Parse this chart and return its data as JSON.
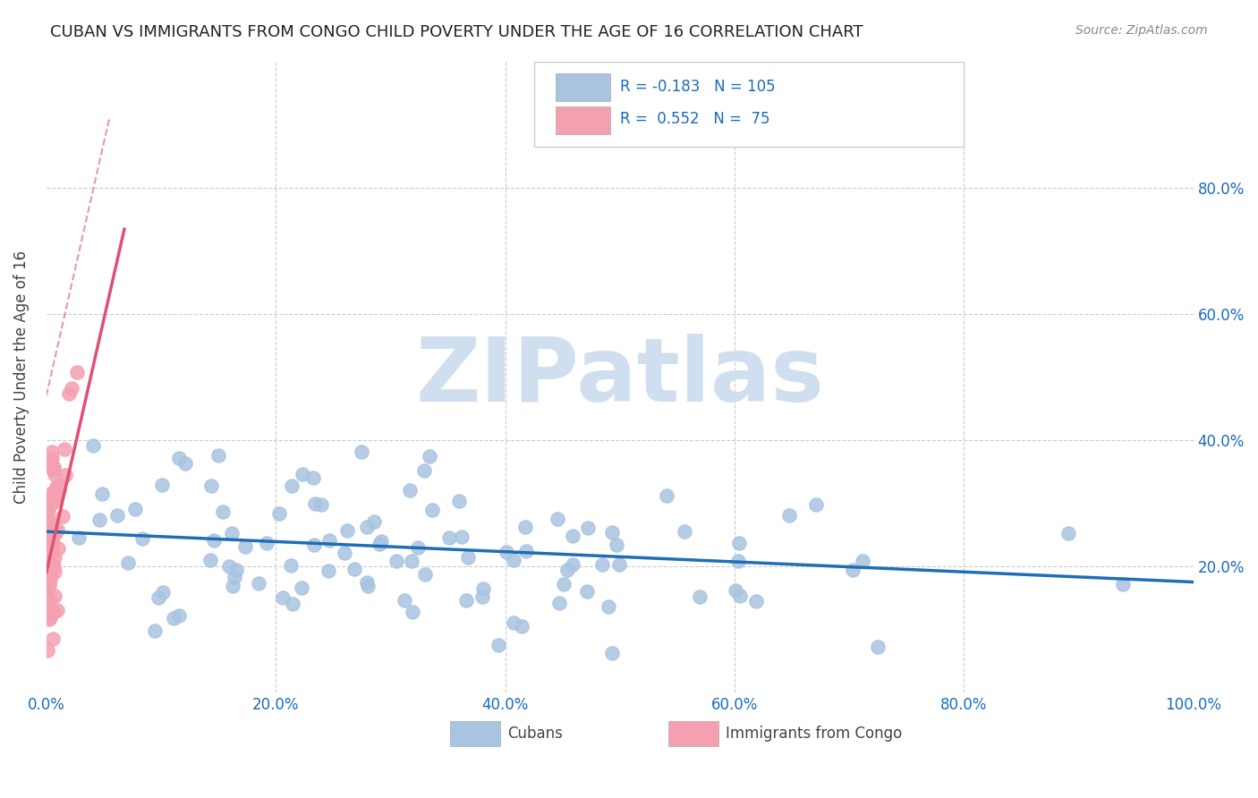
{
  "title": "CUBAN VS IMMIGRANTS FROM CONGO CHILD POVERTY UNDER THE AGE OF 16 CORRELATION CHART",
  "source": "Source: ZipAtlas.com",
  "ylabel": "Child Poverty Under the Age of 16",
  "xlim": [
    0,
    1.0
  ],
  "ylim": [
    0,
    1.0
  ],
  "xticklabels": [
    "0.0%",
    "20.0%",
    "40.0%",
    "60.0%",
    "80.0%",
    "100.0%"
  ],
  "yticklabels": [
    "",
    "20.0%",
    "40.0%",
    "60.0%",
    "80.0%"
  ],
  "legend_labels": [
    "Cubans",
    "Immigrants from Congo"
  ],
  "r_cubans": -0.183,
  "n_cubans": 105,
  "r_congo": 0.552,
  "n_congo": 75,
  "blue_color": "#a8c4e0",
  "pink_color": "#f4a0b0",
  "blue_line_color": "#1f6eb5",
  "pink_line_color": "#e05070",
  "background_color": "#ffffff",
  "watermark_color": "#d0dff0",
  "slope_blue": -0.08,
  "intercept_blue": 0.255,
  "slope_congo": 8.0,
  "intercept_congo": 0.19
}
